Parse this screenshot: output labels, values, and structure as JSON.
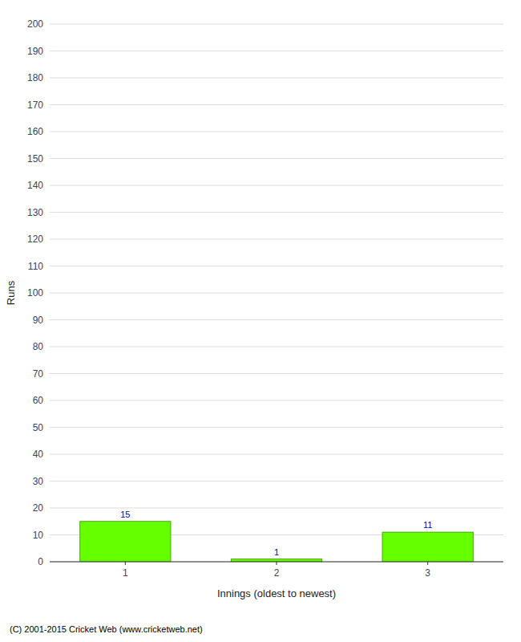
{
  "chart_data": {
    "type": "bar",
    "categories": [
      "1",
      "2",
      "3"
    ],
    "values": [
      15,
      1,
      11
    ],
    "color": "#66ff00",
    "xlabel": "Innings (oldest to newest)",
    "ylabel": "Runs",
    "ylim": [
      0,
      200
    ],
    "yticks": [
      0,
      10,
      20,
      30,
      40,
      50,
      60,
      70,
      80,
      90,
      100,
      110,
      120,
      130,
      140,
      150,
      160,
      170,
      180,
      190,
      200
    ],
    "grid": true,
    "data_labels": true,
    "annotations": [
      "(C) 2001-2015 Cricket Web (www.cricketweb.net)"
    ]
  }
}
